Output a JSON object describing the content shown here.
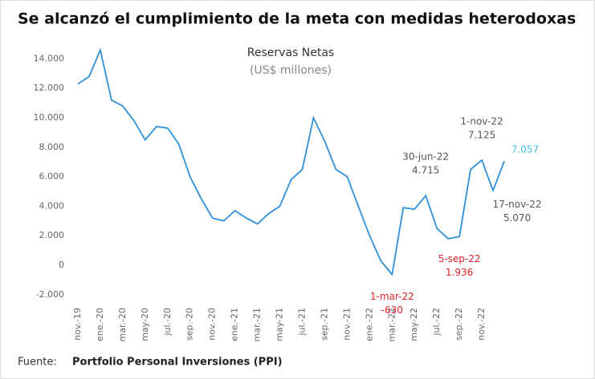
{
  "chart_data": {
    "type": "line",
    "title": "Se alcanzó el cumplimiento de la meta con medidas heterodoxas",
    "subtitle": "Reservas Netas",
    "unit_label": "(US$ millones)",
    "source_label": "Fuente:",
    "source": "Portfolio Personal Inversiones (PPI)",
    "categories": [
      "nov.-19",
      null,
      "ene.-20",
      null,
      "mar.-20",
      null,
      "may-20",
      null,
      "jul.-20",
      null,
      "sep.-20",
      null,
      "nov.-20",
      null,
      "ene.-21",
      null,
      "mar.-21",
      null,
      "may-21",
      null,
      "jul.-21",
      null,
      "sep.-21",
      null,
      "nov.-21",
      null,
      "ene.-22",
      null,
      "mar.-22",
      null,
      "may-22",
      null,
      "jul.-22",
      null,
      "sep.-22",
      null,
      "nov.-22",
      null,
      null
    ],
    "series": [
      {
        "name": "Reservas Netas",
        "color": "#2f8fd8",
        "values": [
          12300,
          12800,
          14600,
          11200,
          10800,
          9800,
          8500,
          9400,
          9300,
          8200,
          6000,
          4500,
          3200,
          3000,
          3700,
          3200,
          2800,
          3500,
          4000,
          5800,
          6500,
          10000,
          8400,
          6500,
          6000,
          4000,
          2000,
          300,
          -630,
          3900,
          3800,
          4715,
          2500,
          1800,
          1936,
          6500,
          7125,
          5070,
          7057
        ]
      }
    ],
    "annotations": [
      {
        "date": "1-mar-22",
        "value": -630,
        "label": "-630",
        "color": "#e0202a"
      },
      {
        "date": "5-sep-22",
        "value": 1936,
        "label": "1.936",
        "color": "#e0202a"
      },
      {
        "date": "30-jun-22",
        "value": 4715,
        "label": "4.715",
        "color": "#555555"
      },
      {
        "date": "1-nov-22",
        "value": 7125,
        "label": "7.125",
        "color": "#555555"
      },
      {
        "date": "17-nov-22",
        "value": 5070,
        "label": "5.070",
        "color": "#555555"
      },
      {
        "value": 7057,
        "label": "7.057",
        "color": "#3cc3f0"
      }
    ],
    "ylim": [
      -2500,
      15000
    ],
    "yticks": [
      {
        "value": -2000,
        "label": "-2.000"
      },
      0,
      {
        "value": 2000,
        "label": "2.000"
      },
      {
        "value": 4000,
        "label": "4.000"
      },
      {
        "value": 6000,
        "label": "6.000"
      },
      {
        "value": 8000,
        "label": "8.000"
      },
      {
        "value": 10000,
        "label": "10.000"
      },
      {
        "value": 12000,
        "label": "12.000"
      },
      {
        "value": 14000,
        "label": "14.000"
      }
    ],
    "grid": false
  }
}
